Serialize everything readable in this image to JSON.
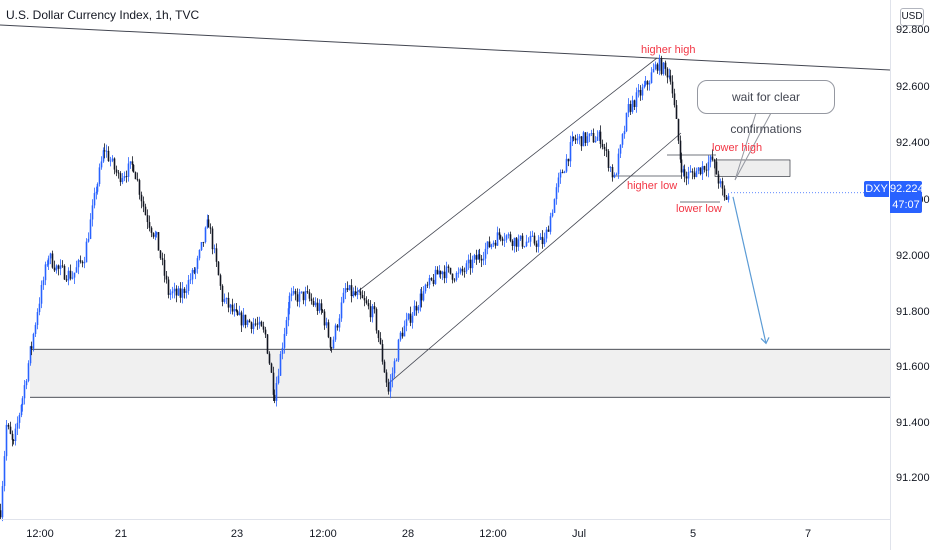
{
  "header": {
    "title": "U.S. Dollar Currency Index, 1h, TVC"
  },
  "price_scale": {
    "currency": "USD",
    "symbol": "DXY",
    "last_price": "92.224",
    "countdown": "47:07"
  },
  "annotations": {
    "higher_high": "higher high",
    "higher_low": "higher low",
    "lower_high": "lower high",
    "lower_low": "lower low",
    "callout": "wait for clear confirmations"
  },
  "colors": {
    "up": "#2962ff",
    "down": "#131722",
    "accent": "#2962ff",
    "annotation": "#f23645",
    "zone_fill": "#f0f0f0"
  },
  "chart_data": {
    "type": "candlestick",
    "title": "U.S. Dollar Currency Index, 1h, TVC",
    "ylim": [
      91.03,
      92.87
    ],
    "y_ticks": [
      "92.800",
      "92.600",
      "92.400",
      "92.200",
      "92.000",
      "91.800",
      "91.600",
      "91.400",
      "91.200"
    ],
    "x_ticks": [
      "12:00",
      "21",
      "23",
      "12:00",
      "28",
      "12:00",
      "Jul",
      "5",
      "5",
      "7"
    ],
    "x_ticks_ordered": [
      "12:00",
      "21",
      "23",
      "12:00",
      "28",
      "12:00",
      "Jul",
      "5",
      "7"
    ],
    "grid": false,
    "anchors": [
      [
        0,
        91.1
      ],
      [
        6,
        91.4
      ],
      [
        13,
        91.33
      ],
      [
        22,
        91.5
      ],
      [
        31,
        91.68
      ],
      [
        37,
        91.81
      ],
      [
        48,
        92.0
      ],
      [
        58,
        91.95
      ],
      [
        72,
        91.93
      ],
      [
        84,
        92.0
      ],
      [
        97,
        92.26
      ],
      [
        104,
        92.38
      ],
      [
        118,
        92.28
      ],
      [
        133,
        92.32
      ],
      [
        145,
        92.15
      ],
      [
        156,
        92.06
      ],
      [
        168,
        91.87
      ],
      [
        180,
        91.86
      ],
      [
        195,
        91.95
      ],
      [
        208,
        92.12
      ],
      [
        222,
        91.85
      ],
      [
        237,
        91.78
      ],
      [
        255,
        91.76
      ],
      [
        265,
        91.72
      ],
      [
        274,
        91.51
      ],
      [
        289,
        91.85
      ],
      [
        305,
        91.86
      ],
      [
        322,
        91.8
      ],
      [
        331,
        91.68
      ],
      [
        345,
        91.88
      ],
      [
        360,
        91.85
      ],
      [
        374,
        91.79
      ],
      [
        388,
        91.52
      ],
      [
        400,
        91.72
      ],
      [
        421,
        91.86
      ],
      [
        440,
        91.95
      ],
      [
        458,
        91.93
      ],
      [
        479,
        92.0
      ],
      [
        500,
        92.08
      ],
      [
        518,
        92.05
      ],
      [
        544,
        92.05
      ],
      [
        558,
        92.26
      ],
      [
        573,
        92.41
      ],
      [
        600,
        92.42
      ],
      [
        614,
        92.27
      ],
      [
        628,
        92.52
      ],
      [
        645,
        92.6
      ],
      [
        657,
        92.68
      ],
      [
        670,
        92.64
      ],
      [
        681,
        92.32
      ],
      [
        684,
        92.28
      ],
      [
        696,
        92.3
      ],
      [
        712,
        92.34
      ],
      [
        718,
        92.27
      ],
      [
        724,
        92.2
      ],
      [
        730,
        92.22
      ]
    ],
    "support_zone": [
      91.5,
      91.67
    ],
    "resistance_box": [
      92.31,
      92.34
    ],
    "projection": {
      "from": 92.22,
      "to": 91.68
    }
  }
}
